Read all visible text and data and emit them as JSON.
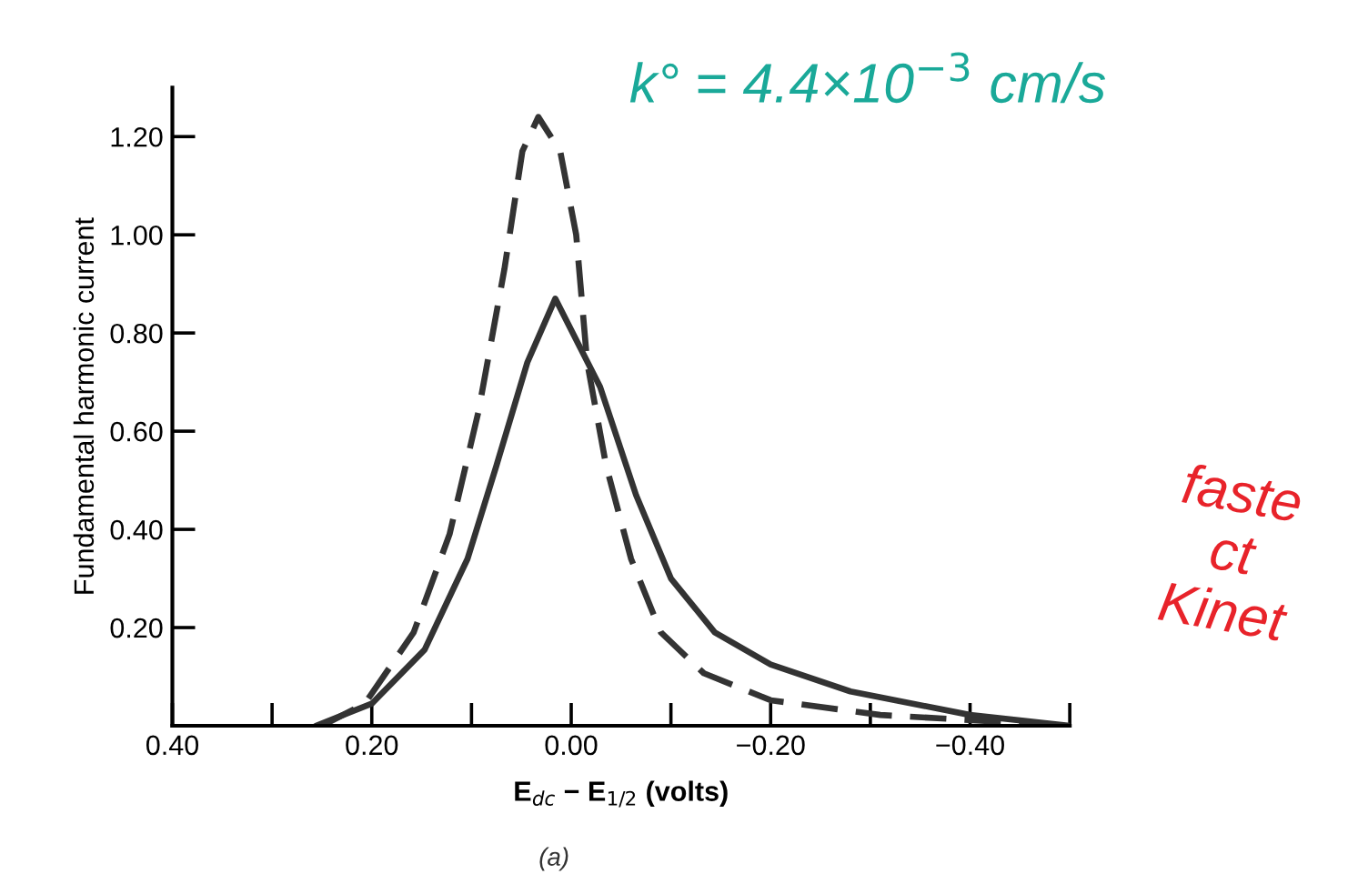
{
  "chart_data": {
    "type": "line",
    "xlabel": "E$_{dc}$ − E$_{1/2}$ (volts)",
    "ylabel": "Fundamental harmonic current",
    "xlim": [
      0.4,
      -0.5
    ],
    "ylim": [
      0,
      1.3
    ],
    "xticks": [
      {
        "value": 0.4,
        "label": "0.40"
      },
      {
        "value": 0.3,
        "label": null
      },
      {
        "value": 0.2,
        "label": "0.20"
      },
      {
        "value": 0.1,
        "label": null
      },
      {
        "value": 0.0,
        "label": "0.00"
      },
      {
        "value": -0.1,
        "label": null
      },
      {
        "value": -0.2,
        "label": "−0.20"
      },
      {
        "value": -0.3,
        "label": null
      },
      {
        "value": -0.4,
        "label": "−0.40"
      },
      {
        "value": -0.5,
        "label": null
      }
    ],
    "yticks": [
      {
        "value": 0.2,
        "label": "0.20"
      },
      {
        "value": 0.4,
        "label": "0.40"
      },
      {
        "value": 0.6,
        "label": "0.60"
      },
      {
        "value": 0.8,
        "label": "0.80"
      },
      {
        "value": 1.0,
        "label": "1.00"
      },
      {
        "value": 1.2,
        "label": "1.20"
      }
    ],
    "grid": false,
    "legend": false,
    "series": [
      {
        "color": "#333333",
        "line_style": "solid",
        "x": [
          0.256,
          0.2,
          0.147,
          0.104,
          0.075,
          0.044,
          0.016,
          -0.029,
          -0.065,
          -0.1,
          -0.144,
          -0.2,
          -0.28,
          -0.4,
          -0.5
        ],
        "values": [
          0,
          0.045,
          0.155,
          0.34,
          0.53,
          0.74,
          0.87,
          0.69,
          0.47,
          0.3,
          0.19,
          0.125,
          0.07,
          0.022,
          0
        ]
      },
      {
        "color": "#333333",
        "line_style": "dashed",
        "x": [
          0.25,
          0.207,
          0.158,
          0.122,
          0.093,
          0.067,
          0.049,
          0.033,
          0.011,
          -0.005,
          -0.016,
          -0.035,
          -0.06,
          -0.09,
          -0.133,
          -0.2,
          -0.31,
          -0.5
        ],
        "values": [
          0,
          0.045,
          0.19,
          0.39,
          0.64,
          0.93,
          1.17,
          1.24,
          1.17,
          1.0,
          0.74,
          0.53,
          0.34,
          0.19,
          0.107,
          0.052,
          0.022,
          0
        ]
      }
    ],
    "annotations": [
      "k° = 4.4×10$^{−3}$ cm/s",
      "faste\nct\nKinet",
      "(a)"
    ]
  }
}
